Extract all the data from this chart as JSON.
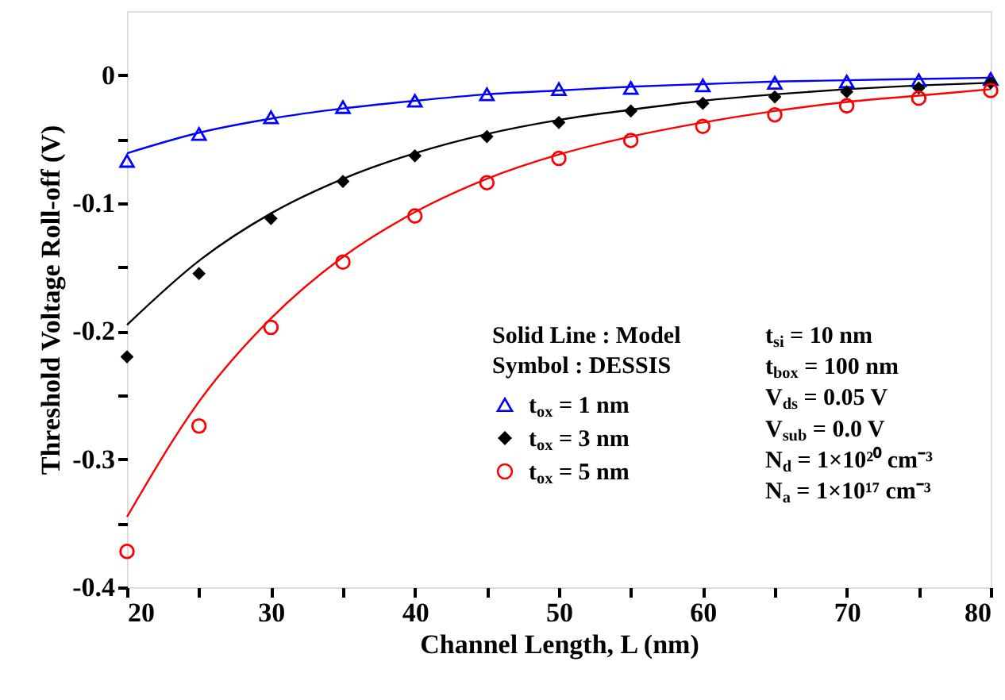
{
  "chart_data": {
    "type": "scatter",
    "xlabel": "Channel Length, L (nm)",
    "ylabel": "Threshold Voltage Roll-off (V)",
    "legend_title": "Solid Line : Model\nSymbol : DESSIS",
    "x": [
      20,
      25,
      30,
      35,
      40,
      45,
      50,
      55,
      60,
      65,
      70,
      75,
      80
    ],
    "series": [
      {
        "type": "line",
        "color": "#0000ff",
        "values": [
          -0.061,
          -0.045,
          -0.034,
          -0.026,
          -0.02,
          -0.015,
          -0.012,
          -0.009,
          -0.007,
          -0.005,
          -0.004,
          -0.003,
          -0.002
        ]
      },
      {
        "type": "line",
        "color": "#000000",
        "values": [
          -0.195,
          -0.145,
          -0.108,
          -0.081,
          -0.061,
          -0.046,
          -0.035,
          -0.027,
          -0.02,
          -0.015,
          -0.011,
          -0.008,
          -0.006
        ]
      },
      {
        "type": "line",
        "color": "#ff0000",
        "values": [
          -0.345,
          -0.255,
          -0.19,
          -0.142,
          -0.107,
          -0.081,
          -0.062,
          -0.048,
          -0.037,
          -0.028,
          -0.021,
          -0.016,
          -0.011
        ]
      },
      {
        "name": "t$_{ox}$ = 1 nm",
        "marker": "triangle",
        "color": "#0000ff",
        "values": [
          -0.067,
          -0.046,
          -0.033,
          -0.025,
          -0.02,
          -0.015,
          -0.011,
          -0.01,
          -0.008,
          -0.006,
          -0.005,
          -0.004,
          -0.003
        ]
      },
      {
        "name": "t$_{ox}$ = 3 nm",
        "marker": "diamond",
        "color": "#000000",
        "values": [
          -0.22,
          -0.155,
          -0.112,
          -0.083,
          -0.063,
          -0.048,
          -0.037,
          -0.028,
          -0.022,
          -0.017,
          -0.013,
          -0.01,
          -0.006
        ]
      },
      {
        "name": "t$_{ox}$ = 5 nm",
        "marker": "circle",
        "color": "#ff0000",
        "values": [
          -0.372,
          -0.274,
          -0.197,
          -0.146,
          -0.11,
          -0.084,
          -0.065,
          -0.051,
          -0.04,
          -0.031,
          -0.024,
          -0.018,
          -0.012
        ]
      }
    ],
    "annotations": [
      "t$_{si}$ = 10 nm",
      "t$_{box}$ = 100 nm",
      "V$_{ds}$ = 0.05 V",
      "V$_{sub}$ = 0.0 V",
      "N$_{d}$ = 1×10²⁰ cm⁻³",
      "N$_{a}$ = 1×10¹⁷ cm⁻³"
    ],
    "xlim": [
      20,
      80
    ],
    "xticks": [
      20,
      {
        "value": 25,
        "label": null
      },
      30,
      {
        "value": 35,
        "label": null
      },
      40,
      {
        "value": 45,
        "label": null
      },
      50,
      {
        "value": 55,
        "label": null
      },
      60,
      {
        "value": 65,
        "label": null
      },
      70,
      {
        "value": 75,
        "label": null
      },
      80
    ],
    "ylim": [
      -0.4,
      0.05
    ],
    "yticks": [
      -0.4,
      {
        "value": -0.35,
        "label": null
      },
      -0.3,
      {
        "value": -0.25,
        "label": null
      },
      -0.2,
      {
        "value": -0.15,
        "label": null
      },
      -0.1,
      {
        "value": -0.05,
        "label": null
      },
      0
    ],
    "legend": "bottom right",
    "grid": false
  }
}
